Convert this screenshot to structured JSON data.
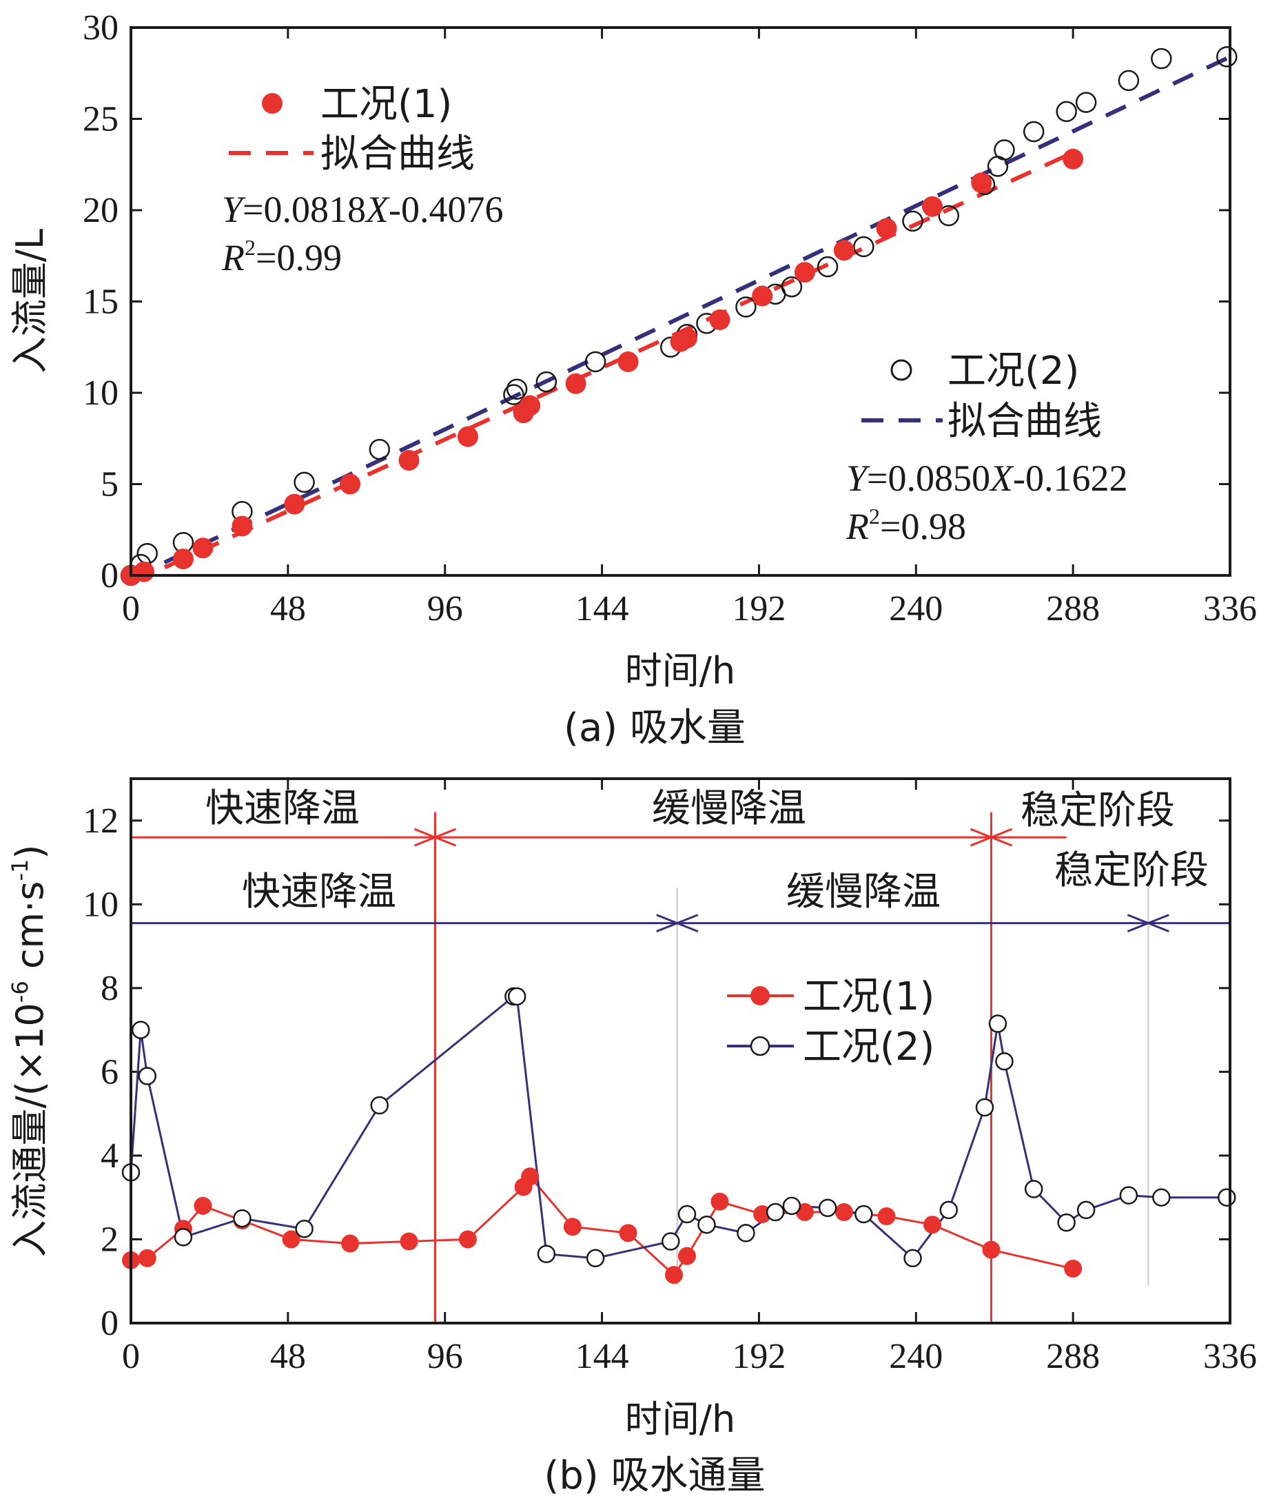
{
  "colors": {
    "case1": "#e8322d",
    "case2": "#35307a",
    "axis": "#1a1a1a",
    "guide": "#c8c8c8"
  },
  "chart_data": [
    {
      "type": "scatter",
      "caption": "(a) 吸水量",
      "xlabel": "时间/h",
      "ylabel": "入流量/L",
      "xlim": [
        0,
        336
      ],
      "ylim": [
        0,
        30
      ],
      "xticks": [
        0,
        48,
        96,
        144,
        192,
        240,
        288,
        336
      ],
      "yticks": [
        0,
        5,
        10,
        15,
        20,
        25,
        30
      ],
      "series": [
        {
          "name": "工况(1)",
          "marker": "filled-circle",
          "x": [
            0,
            4,
            16,
            22,
            34,
            50,
            67,
            85,
            103,
            120,
            122,
            136,
            152,
            168,
            170,
            180,
            193,
            206,
            218,
            231,
            245,
            260,
            288
          ],
          "y": [
            0.0,
            0.2,
            0.9,
            1.5,
            2.7,
            3.9,
            5.0,
            6.3,
            7.6,
            8.9,
            9.3,
            10.5,
            11.7,
            12.8,
            13.0,
            14.0,
            15.3,
            16.6,
            17.8,
            19.0,
            20.2,
            21.5,
            22.8
          ],
          "fit": {
            "label": "拟合曲线",
            "slope": 0.0818,
            "intercept": -0.4076,
            "x_range": [
              0,
              288
            ]
          }
        },
        {
          "name": "工况(2)",
          "marker": "open-circle",
          "x": [
            0,
            3,
            5,
            16,
            34,
            53,
            76,
            117,
            118,
            127,
            142,
            165,
            170,
            176,
            188,
            197,
            202,
            213,
            224,
            239,
            250,
            261,
            265,
            267,
            276,
            286,
            292,
            305,
            315,
            335
          ],
          "y": [
            0.0,
            0.6,
            1.2,
            1.8,
            3.5,
            5.1,
            6.9,
            9.9,
            10.2,
            10.6,
            11.7,
            12.5,
            13.2,
            13.8,
            14.7,
            15.4,
            15.8,
            16.9,
            18.0,
            19.4,
            19.7,
            21.4,
            22.4,
            23.3,
            24.3,
            25.4,
            25.9,
            27.1,
            28.3,
            28.4
          ],
          "fit": {
            "label": "拟合曲线",
            "slope": 0.085,
            "intercept": -0.1622,
            "x_range": [
              0,
              336
            ]
          }
        }
      ],
      "annotations": {
        "eq1": {
          "Y": "Y",
          "rhs1": "=0.0818",
          "X": "X",
          "rhs2": "-0.4076",
          "R": "R",
          "sup": "2",
          "r2": "=0.99"
        },
        "eq2": {
          "Y": "Y",
          "rhs1": "=0.0850",
          "X": "X",
          "rhs2": "-0.1622",
          "R": "R",
          "sup": "2",
          "r2": "=0.98"
        }
      }
    },
    {
      "type": "line",
      "caption": "(b) 吸水通量",
      "xlabel": "时间/h",
      "ylabel_main": "入流通量/(×10",
      "ylabel_sup": "-6",
      "ylabel_mid": " cm·s",
      "ylabel_sup2": "-1",
      "ylabel_end": ")",
      "xlim": [
        0,
        336
      ],
      "ylim": [
        0,
        13
      ],
      "xticks": [
        0,
        48,
        96,
        144,
        192,
        240,
        288,
        336
      ],
      "yticks": [
        0,
        2,
        4,
        6,
        8,
        10,
        12
      ],
      "series": [
        {
          "name": "工况(1)",
          "marker": "filled-circle",
          "x": [
            0,
            5,
            16,
            22,
            34,
            49,
            67,
            85,
            103,
            120,
            122,
            135,
            152,
            166,
            170,
            180,
            193,
            206,
            218,
            231,
            245,
            263,
            288
          ],
          "y": [
            1.5,
            1.55,
            2.25,
            2.8,
            2.45,
            2.0,
            1.9,
            1.95,
            2.0,
            3.25,
            3.5,
            2.3,
            2.15,
            1.15,
            1.6,
            2.9,
            2.6,
            2.65,
            2.65,
            2.55,
            2.35,
            1.75,
            1.3
          ]
        },
        {
          "name": "工况(2)",
          "marker": "open-circle",
          "x": [
            0,
            3,
            5,
            16,
            34,
            53,
            76,
            117,
            118,
            127,
            142,
            165,
            170,
            176,
            188,
            197,
            202,
            213,
            224,
            239,
            250,
            261,
            265,
            267,
            276,
            286,
            292,
            305,
            315,
            335
          ],
          "y": [
            3.6,
            7.0,
            5.9,
            2.05,
            2.5,
            2.25,
            5.2,
            7.8,
            7.8,
            1.65,
            1.55,
            1.95,
            2.6,
            2.35,
            2.15,
            2.65,
            2.8,
            2.75,
            2.6,
            1.55,
            2.7,
            5.15,
            7.15,
            6.25,
            3.2,
            2.4,
            2.7,
            3.05,
            3.0,
            3.0
          ]
        }
      ],
      "phases": {
        "case1": {
          "boundaries": [
            93,
            263
          ],
          "arrow_end": 286,
          "y": 11.6,
          "labels": [
            "快速降温",
            "缓慢降温",
            "稳定阶段"
          ]
        },
        "case2": {
          "boundaries": [
            167,
            311
          ],
          "arrow_end": 336,
          "y": 9.55,
          "labels": [
            "快速降温",
            "缓慢降温",
            "稳定阶段"
          ]
        }
      }
    }
  ]
}
